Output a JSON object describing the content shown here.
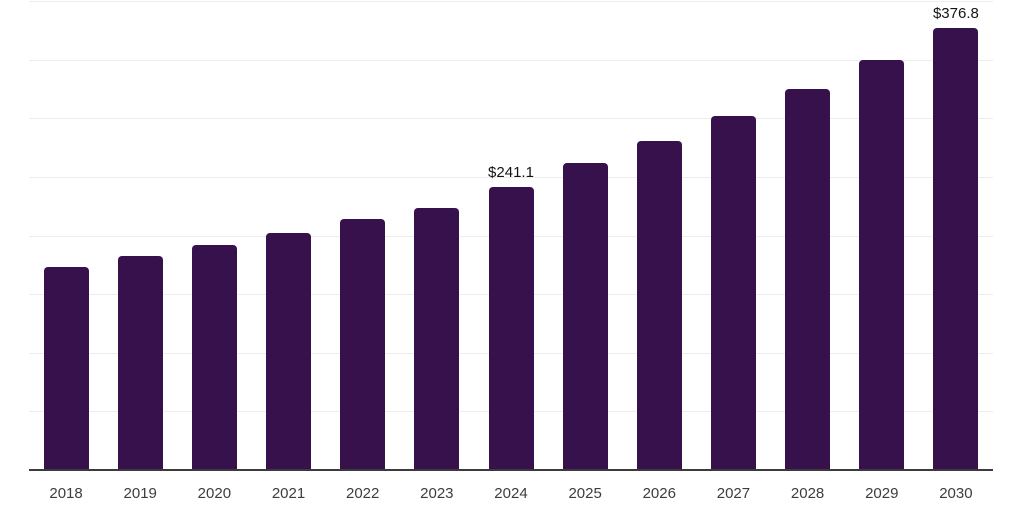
{
  "chart_data": {
    "type": "bar",
    "title": "",
    "xlabel": "",
    "ylabel": "",
    "categories": [
      "2018",
      "2019",
      "2020",
      "2021",
      "2022",
      "2023",
      "2024",
      "2025",
      "2026",
      "2027",
      "2028",
      "2029",
      "2030"
    ],
    "values": [
      173.2,
      182.9,
      192.2,
      202.2,
      214.4,
      223.5,
      241.1,
      261.9,
      280.3,
      301.7,
      325.0,
      350.0,
      376.8
    ],
    "data_labels": [
      {
        "category": "2024",
        "index": 6,
        "text": "$241.1"
      },
      {
        "category": "2030",
        "index": 12,
        "text": "$376.8"
      }
    ],
    "ylim": [
      0,
      400
    ],
    "grid_step": 50,
    "grid_visible": true,
    "legend_visible": false,
    "colors": {
      "bar": "#36114C",
      "gridline": "#EDEDED",
      "axis_line": "#3B3B3B",
      "tick_label": "#3D3D3D",
      "data_label": "#141414",
      "background": "#FFFFFF"
    }
  }
}
